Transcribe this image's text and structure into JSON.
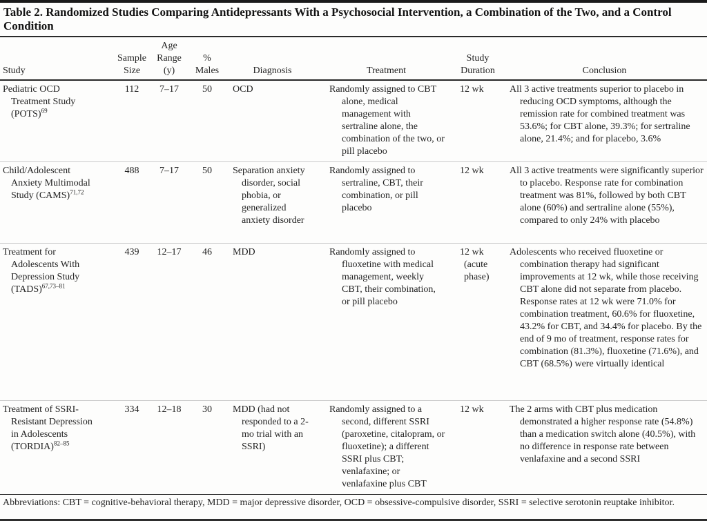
{
  "title": "Table 2. Randomized Studies Comparing Antidepressants With a Psychosocial Intervention, a Combination of the Two, and a Control Condition",
  "headers": {
    "study": "Study",
    "sample_size": [
      "Sample",
      "Size"
    ],
    "age_range": [
      "Age",
      "Range",
      "(y)"
    ],
    "pct_males": [
      "%",
      "Males"
    ],
    "diagnosis": "Diagnosis",
    "treatment": "Treatment",
    "duration": [
      "Study",
      "Duration"
    ],
    "conclusion": "Conclusion"
  },
  "rows": [
    {
      "study": "Pediatric OCD Treatment Study (POTS)",
      "ref": "69",
      "sample_size": "112",
      "age_range": "7–17",
      "pct_males": "50",
      "diagnosis": "OCD",
      "treatment": "Randomly assigned to CBT alone, medical management with sertraline alone, the combination of the two, or pill placebo",
      "duration": "12 wk",
      "conclusion": "All 3 active treatments superior to placebo in reducing OCD symptoms, although the remission rate for combined treatment was 53.6%; for CBT alone, 39.3%; for sertraline alone, 21.4%; and for placebo, 3.6%"
    },
    {
      "study": "Child/Adolescent Anxiety Multimodal Study (CAMS)",
      "ref": "71,72",
      "sample_size": "488",
      "age_range": "7–17",
      "pct_males": "50",
      "diagnosis": "Separation anxiety disorder, social phobia, or generalized anxiety disorder",
      "treatment": "Randomly assigned to sertraline, CBT, their combination, or pill placebo",
      "duration": "12 wk",
      "conclusion": "All 3 active treatments were significantly superior to placebo. Response rate for combination treatment was 81%, followed by both CBT alone (60%) and sertraline alone (55%), compared to only 24% with placebo"
    },
    {
      "study": "Treatment for Adolescents With Depression Study (TADS)",
      "ref": "67,73–81",
      "sample_size": "439",
      "age_range": "12–17",
      "pct_males": "46",
      "diagnosis": "MDD",
      "treatment": "Randomly assigned to fluoxetine with medical management, weekly CBT, their combination, or pill placebo",
      "duration": "12 wk (acute phase)",
      "conclusion": "Adolescents who received fluoxetine or combination therapy had significant improvements at 12 wk, while those receiving CBT alone did not separate from placebo. Response rates at 12 wk were 71.0% for combination treatment, 60.6% for fluoxetine, 43.2% for CBT, and 34.4% for placebo. By the end of 9 mo of treatment, response rates for combination (81.3%), fluoxetine (71.6%), and CBT (68.5%) were virtually identical"
    },
    {
      "study": "Treatment of SSRI-Resistant Depression in Adolescents (TORDIA)",
      "ref": "82–85",
      "sample_size": "334",
      "age_range": "12–18",
      "pct_males": "30",
      "diagnosis": "MDD (had not responded to a 2-mo trial with an SSRI)",
      "treatment": "Randomly assigned to a second, different SSRI (paroxetine, citalopram, or fluoxetine); a different SSRI plus CBT; venlafaxine; or venlafaxine plus CBT",
      "duration": "12 wk",
      "conclusion": "The 2 arms with CBT plus medication demonstrated a higher response rate (54.8%) than a medication switch alone (40.5%), with no difference in response rate between venlafaxine and a second SSRI"
    }
  ],
  "footnote": "Abbreviations: CBT = cognitive-behavioral therapy, MDD = major depressive disorder, OCD = obsessive-compulsive disorder, SSRI = selective serotonin reuptake inhibitor."
}
